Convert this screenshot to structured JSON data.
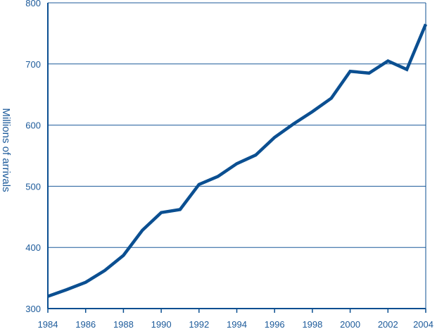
{
  "chart_data": {
    "type": "line",
    "title": "",
    "xlabel": "",
    "ylabel": "Millions of arrivals",
    "xlim": [
      1984,
      2004
    ],
    "ylim": [
      300,
      800
    ],
    "x_ticks": [
      "1984",
      "1986",
      "1988",
      "1990",
      "1992",
      "1994",
      "1996",
      "1998",
      "2000",
      "2002",
      "2004"
    ],
    "y_ticks": [
      "300",
      "400",
      "500",
      "600",
      "700",
      "800"
    ],
    "grid": "horizontal",
    "colors": {
      "line": "#0b4f91",
      "axis": "#0b4f91",
      "grid": "#1c5a9a",
      "text": "#1c5a9a"
    },
    "series": [
      {
        "x": [
          1984,
          1985,
          1986,
          1987,
          1988,
          1989,
          1990,
          1991,
          1992,
          1993,
          1994,
          1995,
          1996,
          1997,
          1998,
          1999,
          2000,
          2001,
          2002,
          2003,
          2004
        ],
        "values": [
          320,
          331,
          343,
          362,
          387,
          428,
          457,
          462,
          503,
          516,
          537,
          551,
          580,
          602,
          622,
          644,
          688,
          685,
          705,
          691,
          765
        ]
      }
    ]
  }
}
